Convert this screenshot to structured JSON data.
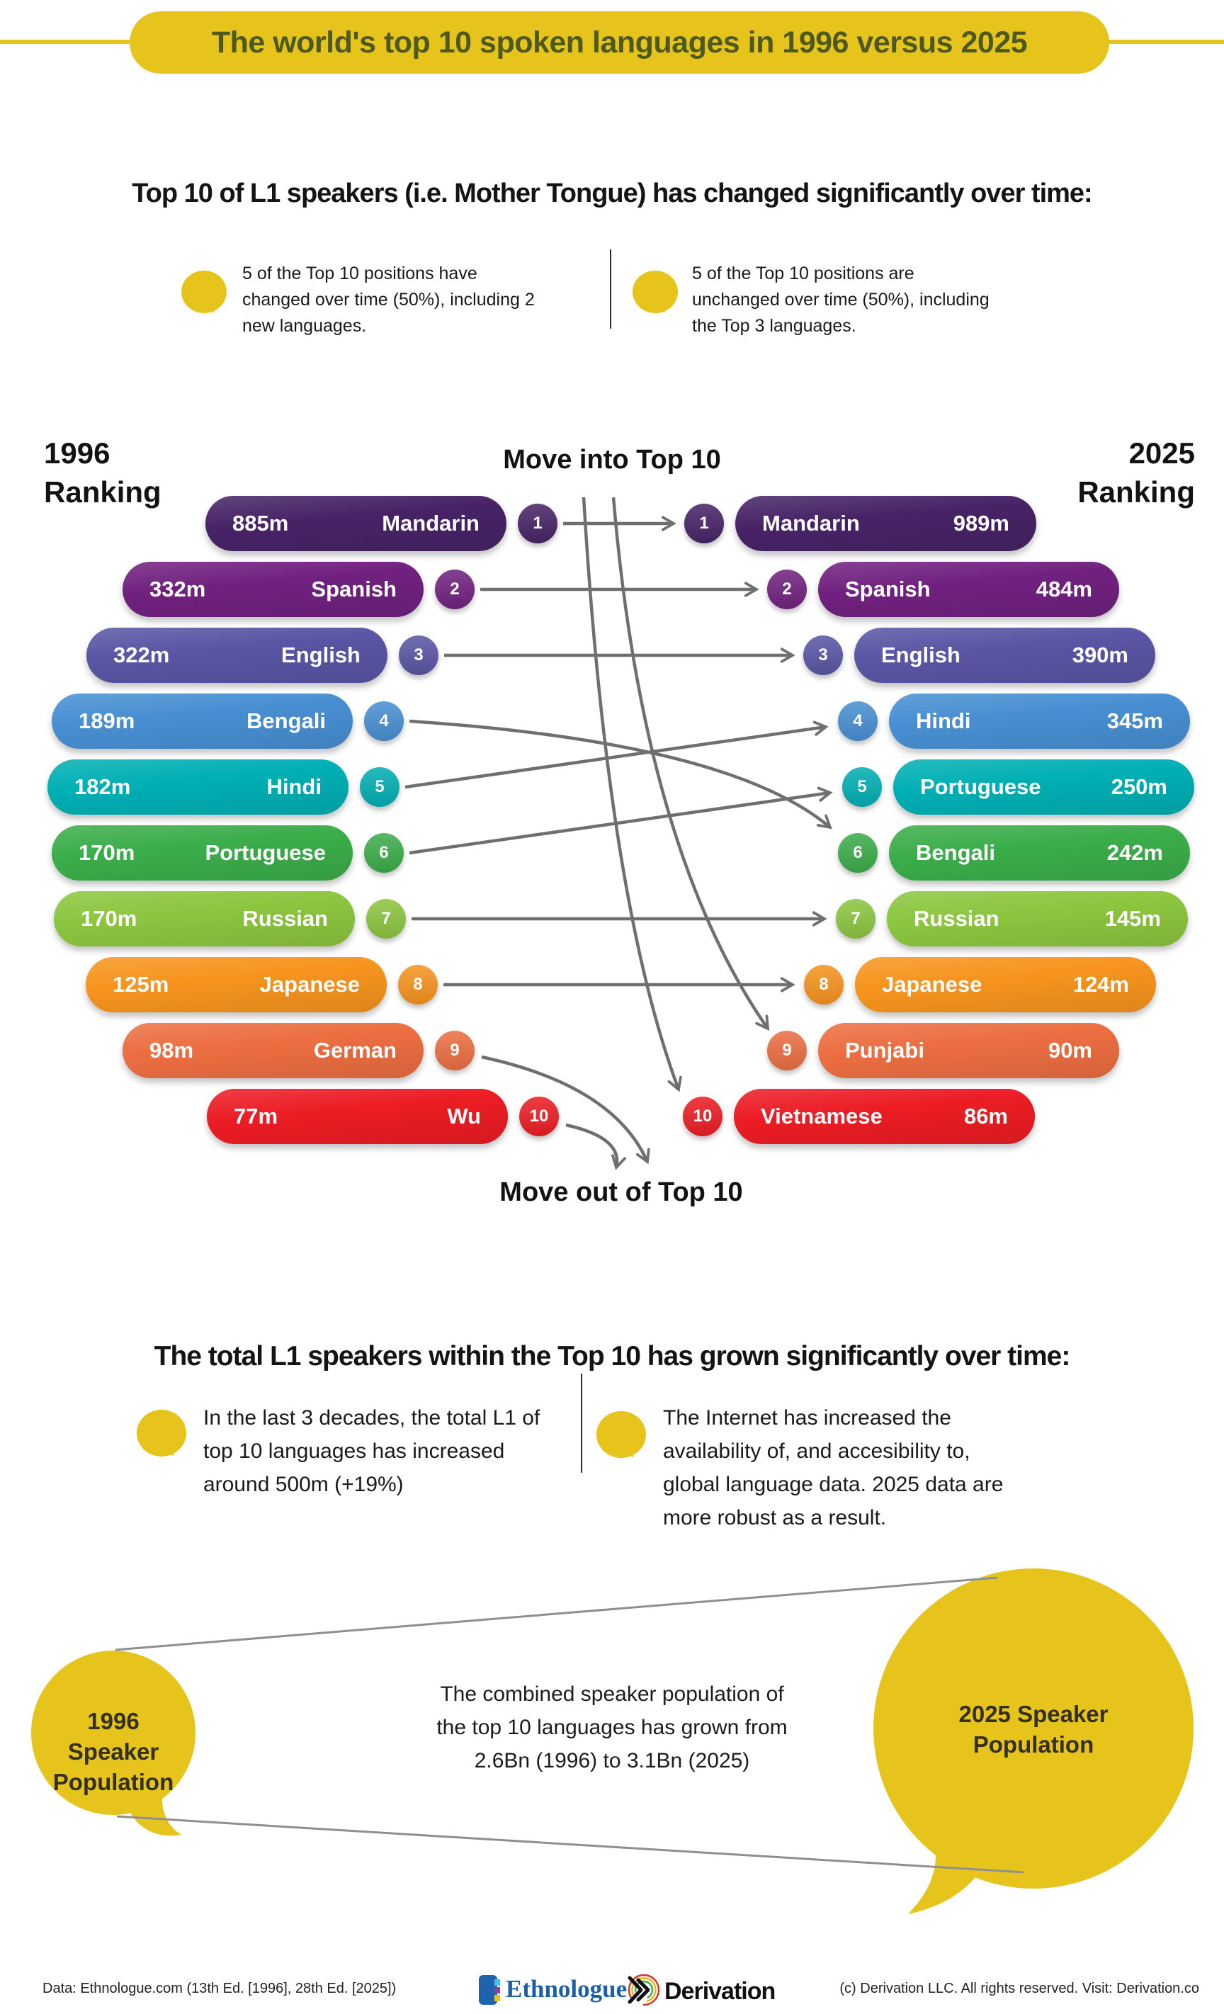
{
  "header": {
    "title": "The world's top 10 spoken languages in 1996 versus 2025"
  },
  "section1": {
    "heading": "Top 10 of L1 speakers (i.e. Mother Tongue) has changed significantly over time:",
    "bubble1": [
      "5 of the Top 10 positions have",
      "changed over time (50%), including 2",
      "new languages."
    ],
    "bubble2": [
      "5 of the Top 10 positions are",
      "unchanged over time (50%), including",
      "the Top 3 languages."
    ]
  },
  "diagram": {
    "left_year": "1996",
    "right_year": "2025",
    "ranking_word": "Ranking",
    "move_in": "Move into Top 10",
    "move_out": "Move out of Top 10",
    "ranking_1996": [
      {
        "rank": "1",
        "language": "Mandarin",
        "speakers": "885m",
        "color": "#472366"
      },
      {
        "rank": "2",
        "language": "Spanish",
        "speakers": "332m",
        "color": "#70217f"
      },
      {
        "rank": "3",
        "language": "English",
        "speakers": "322m",
        "color": "#5a55a4"
      },
      {
        "rank": "4",
        "language": "Bengali",
        "speakers": "189m",
        "color": "#478fd2"
      },
      {
        "rank": "5",
        "language": "Hindi",
        "speakers": "182m",
        "color": "#00afb4"
      },
      {
        "rank": "6",
        "language": "Portuguese",
        "speakers": "170m",
        "color": "#3bad4a"
      },
      {
        "rank": "7",
        "language": "Russian",
        "speakers": "170m",
        "color": "#8cc63f"
      },
      {
        "rank": "8",
        "language": "Japanese",
        "speakers": "125m",
        "color": "#f7941e"
      },
      {
        "rank": "9",
        "language": "German",
        "speakers": "98m",
        "color": "#ec6e41"
      },
      {
        "rank": "10",
        "language": "Wu",
        "speakers": "77m",
        "color": "#ec1c24"
      }
    ],
    "ranking_2025": [
      {
        "rank": "1",
        "language": "Mandarin",
        "speakers": "989m",
        "color": "#472366"
      },
      {
        "rank": "2",
        "language": "Spanish",
        "speakers": "484m",
        "color": "#70217f"
      },
      {
        "rank": "3",
        "language": "English",
        "speakers": "390m",
        "color": "#5a55a4"
      },
      {
        "rank": "4",
        "language": "Hindi",
        "speakers": "345m",
        "color": "#478fd2"
      },
      {
        "rank": "5",
        "language": "Portuguese",
        "speakers": "250m",
        "color": "#00afb4"
      },
      {
        "rank": "6",
        "language": "Bengali",
        "speakers": "242m",
        "color": "#3bad4a"
      },
      {
        "rank": "7",
        "language": "Russian",
        "speakers": "145m",
        "color": "#8cc63f"
      },
      {
        "rank": "8",
        "language": "Japanese",
        "speakers": "124m",
        "color": "#f7941e"
      },
      {
        "rank": "9",
        "language": "Punjabi",
        "speakers": "90m",
        "color": "#ec6e41"
      },
      {
        "rank": "10",
        "language": "Vietnamese",
        "speakers": "86m",
        "color": "#ec1c24"
      }
    ]
  },
  "section2": {
    "heading": "The total L1 speakers within the Top 10 has grown significantly over time:",
    "bubble1": [
      "In the last 3 decades, the total L1 of",
      "top 10 languages has increased",
      "around 500m (+19%)"
    ],
    "bubble2": [
      "The Internet has increased the",
      "availability of, and accesibility to,",
      "global language data. 2025 data are",
      "more robust as a result."
    ]
  },
  "comparison": {
    "left_label": [
      "1996 Speaker",
      "Population"
    ],
    "right_label": [
      "2025 Speaker",
      "Population"
    ],
    "center_text": [
      "The combined speaker population of",
      "the top 10 languages has grown from",
      "2.6Bn (1996) to 3.1Bn (2025)"
    ]
  },
  "footer": {
    "source": "Data: Ethnologue.com (13th Ed. [1996], 28th Ed. [2025])",
    "ethnologue": "Ethnologue",
    "derivation": "Derivation",
    "copyright": "(c) Derivation LLC. All rights reserved. Visit: Derivation.co"
  },
  "colors": {
    "accent_yellow": "#e7c41c",
    "arrow_gray": "#6f6f6f",
    "title_text": "#4e591d"
  },
  "chart_data": {
    "type": "table",
    "title": "The world's top 10 spoken languages in 1996 versus 2025",
    "categories": [
      1,
      2,
      3,
      4,
      5,
      6,
      7,
      8,
      9,
      10
    ],
    "series": [
      {
        "name": "1996 Ranking (L1 speakers, millions)",
        "labels": [
          "Mandarin",
          "Spanish",
          "English",
          "Bengali",
          "Hindi",
          "Portuguese",
          "Russian",
          "Japanese",
          "German",
          "Wu"
        ],
        "values": [
          885,
          332,
          322,
          189,
          182,
          170,
          170,
          125,
          98,
          77
        ]
      },
      {
        "name": "2025 Ranking (L1 speakers, millions)",
        "labels": [
          "Mandarin",
          "Spanish",
          "English",
          "Hindi",
          "Portuguese",
          "Bengali",
          "Russian",
          "Japanese",
          "Punjabi",
          "Vietnamese"
        ],
        "values": [
          989,
          484,
          390,
          345,
          250,
          242,
          145,
          124,
          90,
          86
        ]
      }
    ],
    "moved_into_top10": [
      "Punjabi",
      "Vietnamese"
    ],
    "moved_out_of_top10": [
      "German",
      "Wu"
    ],
    "combined_total_1996": "2.6Bn",
    "combined_total_2025": "3.1Bn"
  }
}
